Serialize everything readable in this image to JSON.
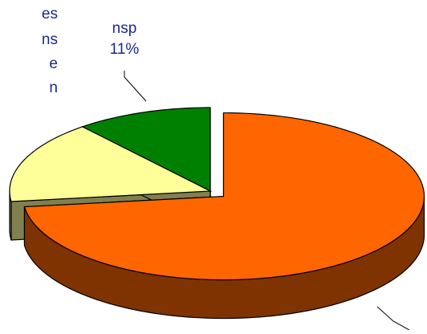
{
  "chart_data": {
    "type": "pie3d",
    "categories": [
      null,
      null,
      "nsp"
    ],
    "values": [
      73,
      16,
      11
    ],
    "value_labels": [
      null,
      null,
      "11%"
    ],
    "colors": [
      "#ff6600",
      "#ffff99",
      "#008000"
    ],
    "side_colors": [
      "#7f3300",
      "#808050",
      "#004000"
    ],
    "annotations": [
      "es",
      "ns",
      "e",
      "n"
    ]
  }
}
